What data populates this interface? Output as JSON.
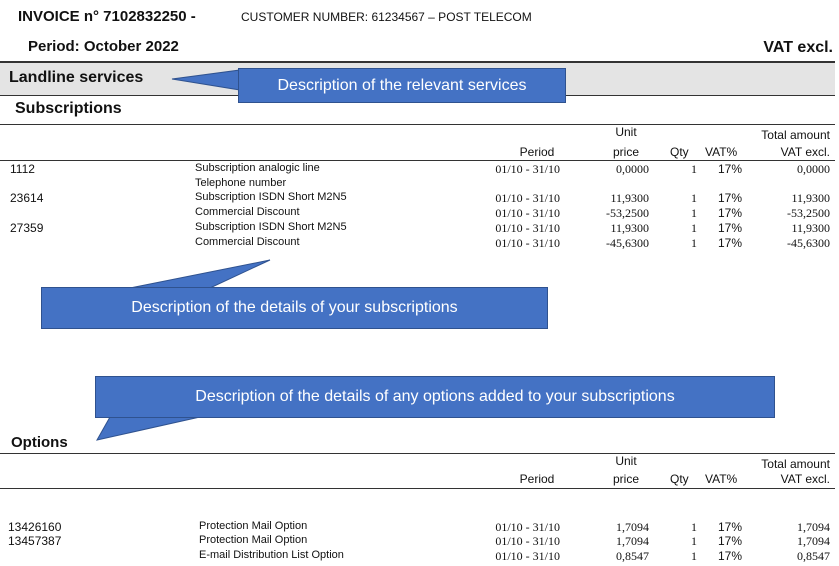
{
  "header": {
    "invoice_title": "INVOICE n° 7102832250 -",
    "customer": "CUSTOMER NUMBER: 61234567 – POST TELECOM",
    "period": "Period: October 2022",
    "vat_note": "VAT excl."
  },
  "section": {
    "title": "Landline services"
  },
  "callouts": {
    "services": "Description of the relevant services",
    "subscriptions": "Description of the details of your subscriptions",
    "options": "Description of the details of any options added to your subscriptions"
  },
  "columns": {
    "unit": "Unit",
    "price": "price",
    "period": "Period",
    "qty": "Qty",
    "vat": "VAT%",
    "total1": "Total amount",
    "total2": "VAT excl."
  },
  "subscriptions": {
    "title": "Subscriptions",
    "rows": [
      {
        "id": "1112",
        "desc": "Subscription analogic line",
        "period": "01/10 - 31/10",
        "price": "0,0000",
        "qty": "1",
        "vat": "17%",
        "total": "0,0000"
      },
      {
        "id": "",
        "desc": "Telephone number",
        "period": "",
        "price": "",
        "qty": "",
        "vat": "",
        "total": ""
      },
      {
        "id": "23614",
        "desc": "Subscription ISDN Short M2N5",
        "period": "01/10 - 31/10",
        "price": "11,9300",
        "qty": "1",
        "vat": "17%",
        "total": "11,9300"
      },
      {
        "id": "",
        "desc": "Commercial Discount",
        "period": "01/10 - 31/10",
        "price": "-53,2500",
        "qty": "1",
        "vat": "17%",
        "total": "-53,2500"
      },
      {
        "id": "27359",
        "desc": "Subscription ISDN Short M2N5",
        "period": "01/10 - 31/10",
        "price": "11,9300",
        "qty": "1",
        "vat": "17%",
        "total": "11,9300"
      },
      {
        "id": "",
        "desc": "Commercial Discount",
        "period": "01/10 - 31/10",
        "price": "-45,6300",
        "qty": "1",
        "vat": "17%",
        "total": "-45,6300"
      }
    ]
  },
  "options": {
    "title": "Options",
    "rows": [
      {
        "id": "13426160",
        "desc": "Protection Mail Option",
        "period": "01/10 - 31/10",
        "price": "1,7094",
        "qty": "1",
        "vat": "17%",
        "total": "1,7094"
      },
      {
        "id": "13457387",
        "desc": "Protection Mail Option",
        "period": "01/10 - 31/10",
        "price": "1,7094",
        "qty": "1",
        "vat": "17%",
        "total": "1,7094"
      },
      {
        "id": "",
        "desc": "E-mail Distribution List Option",
        "period": "01/10 - 31/10",
        "price": "0,8547",
        "qty": "1",
        "vat": "17%",
        "total": "0,8547"
      }
    ]
  },
  "colors": {
    "callout": "#4472c4",
    "callout_border": "#2f528f",
    "band": "#e4e4e4"
  }
}
